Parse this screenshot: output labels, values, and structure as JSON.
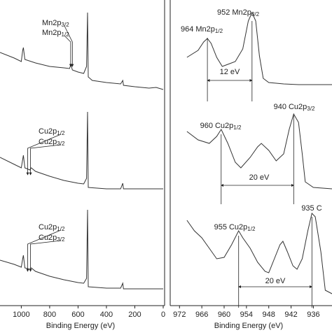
{
  "chart_data": [
    {
      "type": "line",
      "xlabel": "Binding Energy (eV)",
      "xlim": [
        1150,
        0
      ],
      "ylim": [
        0,
        437
      ],
      "xticks": [
        1000,
        800,
        600,
        400,
        200,
        0
      ],
      "series": [
        {
          "color": "#333333",
          "x": [
            1150,
            1050,
            1000,
            990,
            985,
            975,
            900,
            800,
            700,
            660,
            650,
            640,
            600,
            560,
            540,
            533,
            528,
            500,
            400,
            300,
            285,
            280,
            200,
            100,
            50,
            0
          ],
          "values": [
            362,
            354,
            349,
            365,
            369,
            352,
            347,
            342,
            340,
            339,
            345,
            337,
            334,
            332,
            342,
            419,
            327,
            322,
            319,
            317,
            322,
            315,
            313,
            311,
            312,
            309
          ]
        },
        {
          "color": "#333333",
          "x": [
            1150,
            1050,
            1000,
            990,
            985,
            975,
            940,
            930,
            900,
            800,
            700,
            600,
            560,
            540,
            533,
            528,
            400,
            300,
            285,
            280,
            200,
            0
          ],
          "values": [
            212,
            202,
            197,
            209,
            215,
            197,
            194,
            197,
            192,
            185,
            179,
            175,
            174,
            182,
            277,
            169,
            167,
            167,
            175,
            167,
            167,
            167
          ]
        },
        {
          "color": "#333333",
          "x": [
            1150,
            1050,
            1000,
            990,
            985,
            975,
            940,
            930,
            900,
            800,
            700,
            600,
            560,
            540,
            533,
            528,
            400,
            300,
            285,
            280,
            200,
            0
          ],
          "values": [
            65,
            59,
            55,
            67,
            72,
            54,
            52,
            54,
            49,
            42,
            37,
            33,
            32,
            39,
            137,
            27,
            25,
            25,
            32,
            24,
            24,
            24
          ]
        }
      ],
      "annotations": [
        {
          "label": "Mn2p",
          "sub": "3/2",
          "x": 640
        },
        {
          "label": "Mn2p",
          "sub": "1/2",
          "x": 652
        },
        {
          "label": "Cu2p",
          "sub": "1/2",
          "x": 955
        },
        {
          "label": "Cu2p",
          "sub": "3/2",
          "x": 935
        },
        {
          "label": "Cu2p",
          "sub": "1/2",
          "x": 955
        },
        {
          "label": "Cu2p",
          "sub": "3/2",
          "x": 935
        }
      ]
    },
    {
      "type": "line",
      "xlabel": "Binding Energy (eV)",
      "xlim": [
        974.5,
        931
      ],
      "ylim": [
        0,
        437
      ],
      "xticks": [
        972,
        966,
        960,
        954,
        948,
        942,
        936
      ],
      "series": [
        {
          "color": "#333333",
          "x": [
            970,
            967,
            965.5,
            964.5,
            963.5,
            962,
            960.5,
            959,
            957,
            955,
            953.5,
            952.5,
            951.5,
            950.5,
            949.5,
            948,
            944,
            940,
            931
          ],
          "values": [
            355,
            365,
            377,
            382,
            375,
            355,
            342,
            345,
            349,
            367,
            407,
            419,
            407,
            357,
            325,
            319,
            317,
            316,
            316
          ]
        },
        {
          "color": "#333333",
          "x": [
            970,
            967,
            964,
            962,
            960.8,
            959,
            957,
            955.5,
            953,
            951,
            950,
            948,
            946,
            944,
            942.5,
            941.3,
            940,
            939,
            938.2,
            936,
            931
          ],
          "values": [
            249,
            237,
            232,
            242,
            252,
            232,
            205,
            197,
            212,
            227,
            232,
            222,
            207,
            217,
            252,
            274,
            262,
            217,
            177,
            169,
            167
          ]
        },
        {
          "color": "#333333",
          "x": [
            970,
            968,
            966,
            964,
            962,
            960,
            958,
            956.1,
            955,
            953,
            951,
            949,
            948,
            946.5,
            945,
            944.2,
            943,
            941.5,
            940.4,
            939,
            937.5,
            936.4,
            935.5,
            934,
            932.8,
            931
          ],
          "values": [
            122,
            107,
            97,
            82,
            67,
            69,
            87,
            107,
            97,
            82,
            62,
            49,
            47,
            67,
            87,
            92,
            77,
            57,
            52,
            67,
            107,
            132,
            127,
            77,
            22,
            17
          ]
        }
      ],
      "annotations": [
        {
          "label": "964 Mn2p",
          "sub": "1/2",
          "x": 964.5
        },
        {
          "label": "952 Mn2p",
          "sub": "3/2",
          "x": 952.5
        },
        {
          "label": "12 eV"
        },
        {
          "label": "960 Cu2p",
          "sub": "1/2",
          "x": 960.8
        },
        {
          "label": "940 Cu2p",
          "sub": "3/2",
          "x": 941.3
        },
        {
          "label": "20 eV"
        },
        {
          "label": "955 Cu2p",
          "sub": "1/2",
          "x": 956.1
        },
        {
          "label": "935 C",
          "x": 936.4
        },
        {
          "label": "20 eV"
        }
      ]
    }
  ]
}
